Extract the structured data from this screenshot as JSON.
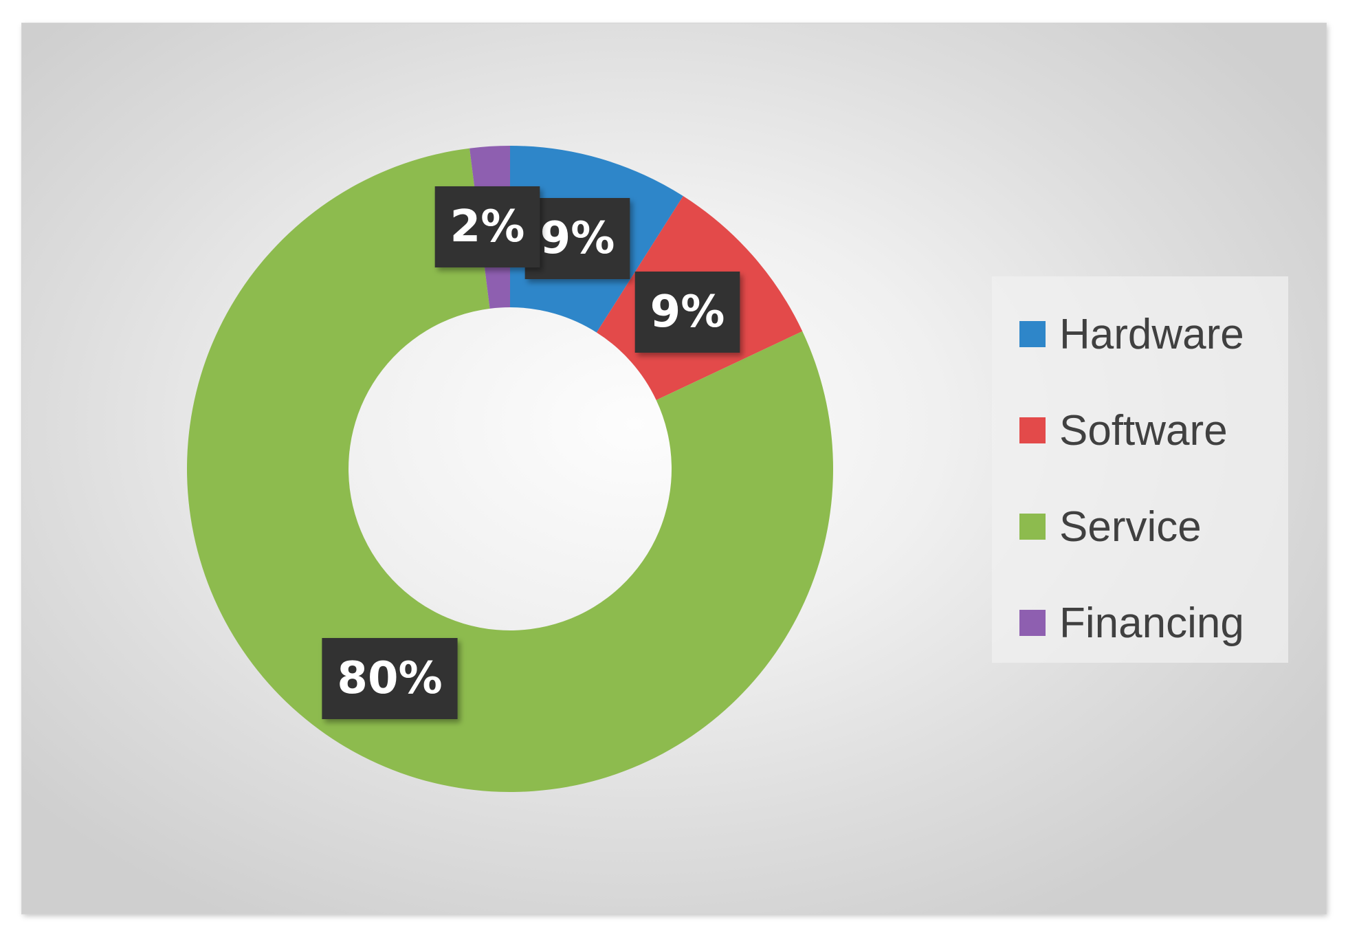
{
  "chart_data": {
    "type": "pie",
    "variant": "doughnut",
    "title": "",
    "categories": [
      "Hardware",
      "Software",
      "Service",
      "Financing"
    ],
    "values": [
      9,
      9,
      80,
      2
    ],
    "labels": [
      "9%",
      "9%",
      "80%",
      "2%"
    ],
    "colors": [
      "#2e86c9",
      "#e34a4a",
      "#8dbb4e",
      "#8e5fb0"
    ],
    "legend": {
      "position": "right",
      "entries": [
        "Hardware",
        "Software",
        "Service",
        "Financing"
      ]
    },
    "start_angle_deg": 0,
    "direction": "clockwise",
    "grid": false
  }
}
